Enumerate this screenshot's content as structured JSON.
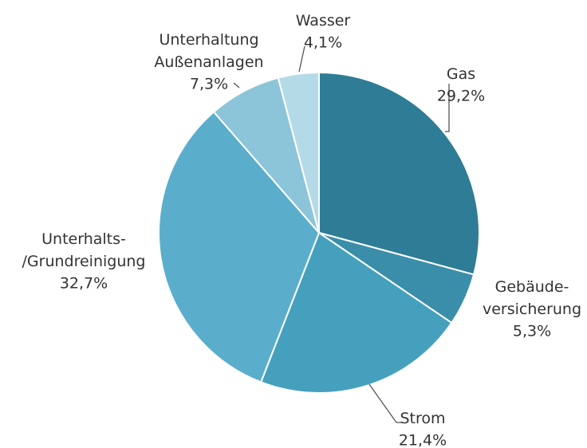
{
  "chart_data": {
    "type": "pie",
    "categories": [
      "Gas",
      "Gebäude-\nversicherung",
      "Strom",
      "Unterhalts-\n/Grundreinigung",
      "Unterhaltung\nAußenanlagen",
      "Wasser"
    ],
    "values": [
      29.2,
      5.3,
      21.4,
      32.7,
      7.3,
      4.1
    ],
    "value_labels": [
      "29,2%",
      "5,3%",
      "21,4%",
      "32,7%",
      "7,3%",
      "4,1%"
    ],
    "colors": [
      "#2f7c96",
      "#3a8eaa",
      "#45a0be",
      "#5aaecb",
      "#8cc5d9",
      "#b5dae7"
    ]
  }
}
